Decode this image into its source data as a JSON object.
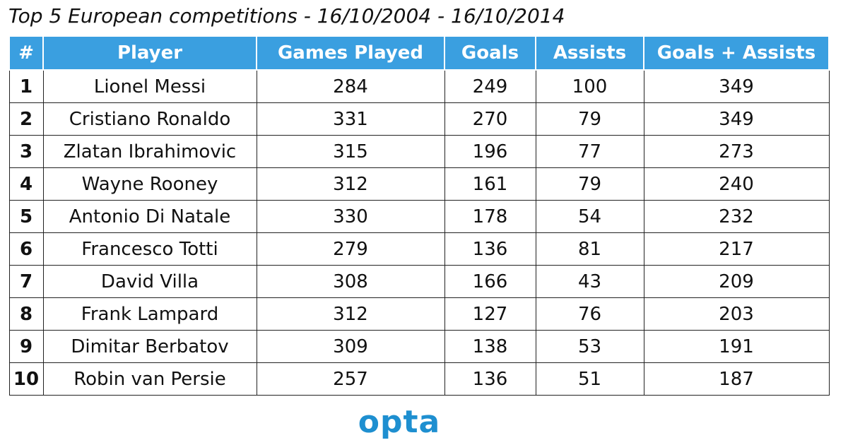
{
  "header": {
    "title": "Top 5 European competitions - 16/10/2004 - 16/10/2014"
  },
  "table": {
    "columns": [
      "#",
      "Player",
      "Games Played",
      "Goals",
      "Assists",
      "Goals + Assists"
    ],
    "rows": [
      [
        1,
        "Lionel Messi",
        284,
        249,
        100,
        349
      ],
      [
        2,
        "Cristiano Ronaldo",
        331,
        270,
        79,
        349
      ],
      [
        3,
        "Zlatan Ibrahimovic",
        315,
        196,
        77,
        273
      ],
      [
        4,
        "Wayne Rooney",
        312,
        161,
        79,
        240
      ],
      [
        5,
        "Antonio Di Natale",
        330,
        178,
        54,
        232
      ],
      [
        6,
        "Francesco Totti",
        279,
        136,
        81,
        217
      ],
      [
        7,
        "David Villa",
        308,
        166,
        43,
        209
      ],
      [
        8,
        "Frank Lampard",
        312,
        127,
        76,
        203
      ],
      [
        9,
        "Dimitar Berbatov",
        309,
        138,
        53,
        191
      ],
      [
        10,
        "Robin van Persie",
        257,
        136,
        51,
        187
      ]
    ]
  },
  "footer": {
    "logo": "opta"
  }
}
